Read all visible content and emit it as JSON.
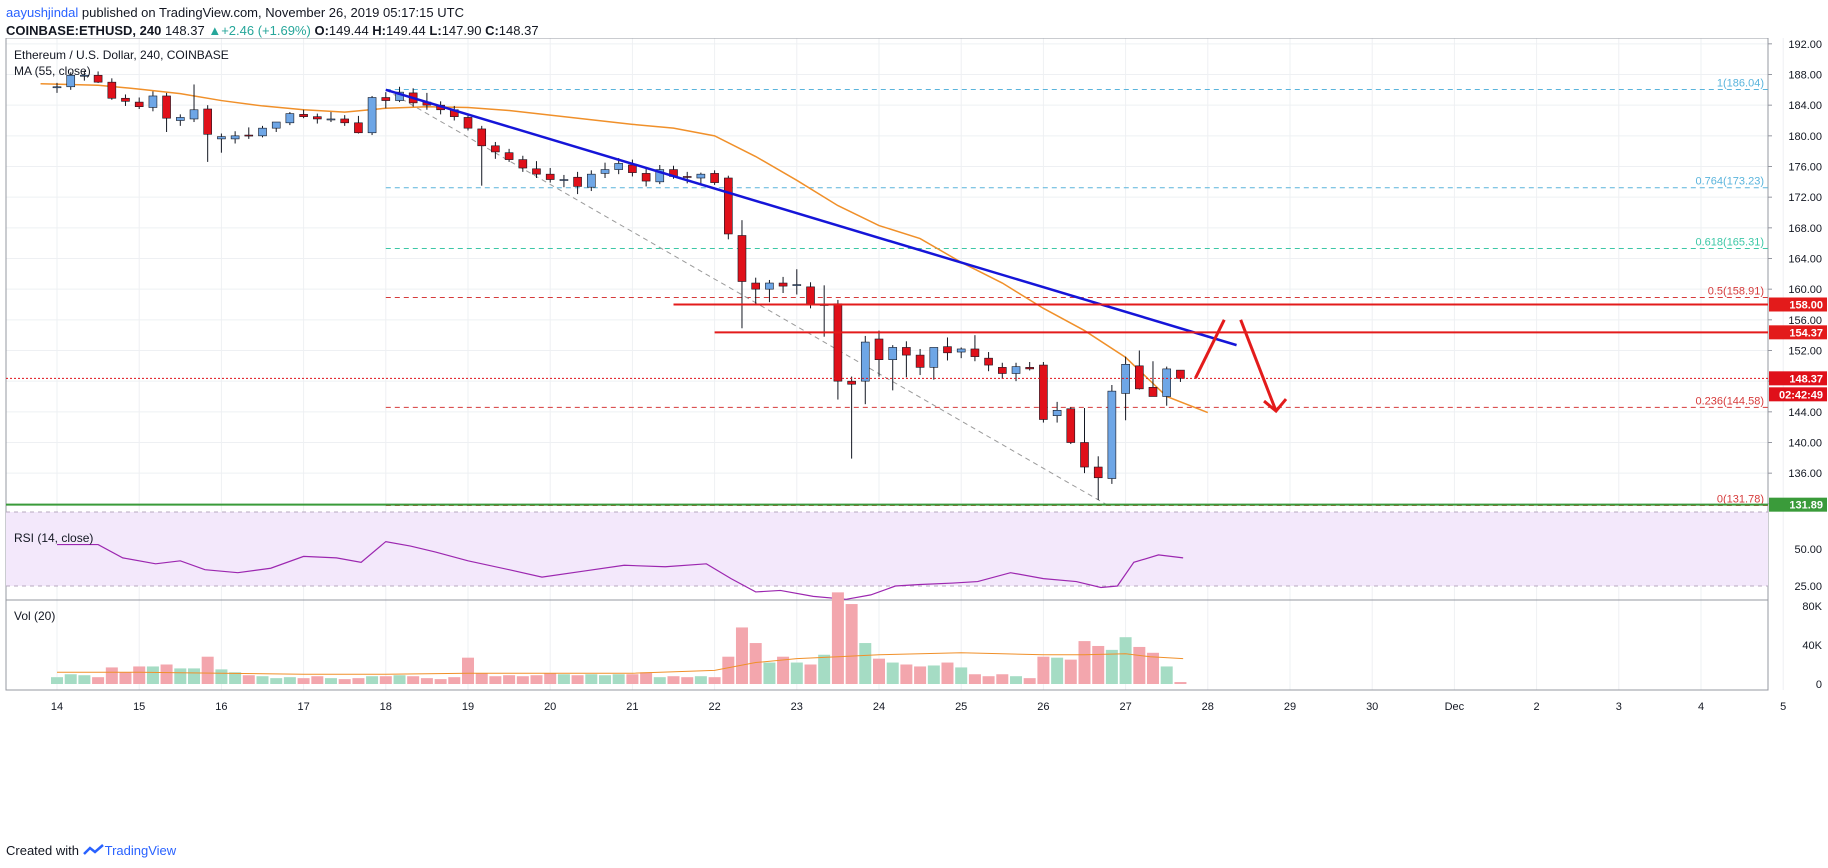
{
  "header": {
    "author": "aayushjindal",
    "published_text": "published on TradingView.com, November 26, 2019 05:17:15 UTC",
    "symbol": "COINBASE:ETHUSD, 240",
    "last": "148.37",
    "change": "+2.46 (+1.69%)",
    "o_label": "O:",
    "o_value": "149.44",
    "h_label": "H:",
    "h_value": "149.44",
    "l_label": "L:",
    "l_value": "147.90",
    "c_label": "C:",
    "c_value": "148.37"
  },
  "legend": {
    "title": "Ethereum / U.S. Dollar, 240, COINBASE",
    "ma": "MA (55, close)",
    "rsi": "RSI (14, close)",
    "vol": "Vol (20)"
  },
  "footer": {
    "created_with": "Created with",
    "brand": "TradingView"
  },
  "colors": {
    "up": "#6ea6e6",
    "down": "#e0101a",
    "ma": "#f0902a",
    "trend": "#1515d8",
    "level": "#e31b1b",
    "support": "#3a9b3a",
    "rsi": "#9c27b0",
    "fib_blue": "#5ab4dc",
    "fib_green": "#3cc7a6",
    "fib_red": "#d63b3b",
    "vol_up": "#a5dcc4",
    "vol_down": "#f3a6ad"
  },
  "chart_data": {
    "type": "candlestick",
    "x_ticks": [
      "14",
      "15",
      "16",
      "17",
      "18",
      "19",
      "20",
      "21",
      "22",
      "23",
      "24",
      "25",
      "26",
      "27",
      "28",
      "29",
      "30",
      "Dec",
      "2",
      "3",
      "4",
      "5"
    ],
    "price_ticks": [
      "192.00",
      "188.00",
      "184.00",
      "180.00",
      "176.00",
      "172.00",
      "168.00",
      "164.00",
      "160.00",
      "156.00",
      "152.00",
      "148.00",
      "144.00",
      "140.00",
      "136.00",
      "132.00"
    ],
    "ylim": [
      129.5,
      192.5
    ],
    "rsi_ticks": [
      "50.00",
      "25.00"
    ],
    "vol_ticks": [
      "80K",
      "40K",
      "0"
    ],
    "candles": [
      [
        0.0,
        186.4,
        186.9,
        185.6,
        186.4
      ],
      [
        0.167,
        186.4,
        188.3,
        186.0,
        187.9
      ],
      [
        0.333,
        187.8,
        188.5,
        187.2,
        187.9
      ],
      [
        0.5,
        187.9,
        188.4,
        186.9,
        187.0
      ],
      [
        0.667,
        187.0,
        187.5,
        184.7,
        184.9
      ],
      [
        0.833,
        184.9,
        185.4,
        183.9,
        184.5
      ],
      [
        1.0,
        184.4,
        185.0,
        183.5,
        183.8
      ],
      [
        1.167,
        183.7,
        185.8,
        183.2,
        185.2
      ],
      [
        1.333,
        185.2,
        185.6,
        180.5,
        182.3
      ],
      [
        1.5,
        182.0,
        182.8,
        181.3,
        182.4
      ],
      [
        1.667,
        182.2,
        186.7,
        181.8,
        183.4
      ],
      [
        1.833,
        183.5,
        184.0,
        176.6,
        180.2
      ],
      [
        2.0,
        179.6,
        180.3,
        177.8,
        179.9
      ],
      [
        2.167,
        179.6,
        180.6,
        179.0,
        180.0
      ],
      [
        2.333,
        180.1,
        181.1,
        179.6,
        180.0
      ],
      [
        2.5,
        180.0,
        181.3,
        179.8,
        181.0
      ],
      [
        2.667,
        181.0,
        181.8,
        180.5,
        181.8
      ],
      [
        2.833,
        181.7,
        183.1,
        181.4,
        182.9
      ],
      [
        3.0,
        182.8,
        183.4,
        182.3,
        182.5
      ],
      [
        3.167,
        182.5,
        182.9,
        181.6,
        182.2
      ],
      [
        3.333,
        182.2,
        183.1,
        181.8,
        182.2
      ],
      [
        3.5,
        182.2,
        182.7,
        181.3,
        181.7
      ],
      [
        3.667,
        181.7,
        182.6,
        180.3,
        180.4
      ],
      [
        3.833,
        180.4,
        185.2,
        180.1,
        185.0
      ],
      [
        4.0,
        185.0,
        185.7,
        183.6,
        184.6
      ],
      [
        4.167,
        184.6,
        186.4,
        184.4,
        185.7
      ],
      [
        4.333,
        185.6,
        186.2,
        183.8,
        184.3
      ],
      [
        4.5,
        184.4,
        185.6,
        183.4,
        184.0
      ],
      [
        4.667,
        184.0,
        184.5,
        182.8,
        183.4
      ],
      [
        4.833,
        183.4,
        183.9,
        182.0,
        182.5
      ],
      [
        5.0,
        182.4,
        182.9,
        180.7,
        181.0
      ],
      [
        5.167,
        180.9,
        181.3,
        173.5,
        178.7
      ],
      [
        5.333,
        178.7,
        179.2,
        177.0,
        177.9
      ],
      [
        5.5,
        177.8,
        178.3,
        176.6,
        176.9
      ],
      [
        5.667,
        176.9,
        177.4,
        175.3,
        175.8
      ],
      [
        5.833,
        175.7,
        176.7,
        174.5,
        175.0
      ],
      [
        6.0,
        175.0,
        175.8,
        173.9,
        174.3
      ],
      [
        6.167,
        174.2,
        174.9,
        173.3,
        174.3
      ],
      [
        6.333,
        174.6,
        175.3,
        172.4,
        173.4
      ],
      [
        6.5,
        173.3,
        175.5,
        172.8,
        175.0
      ],
      [
        6.667,
        175.1,
        176.5,
        174.5,
        175.6
      ],
      [
        6.833,
        175.6,
        177.1,
        175.0,
        176.4
      ],
      [
        7.0,
        176.2,
        176.9,
        174.7,
        175.2
      ],
      [
        7.167,
        175.1,
        175.9,
        173.4,
        174.1
      ],
      [
        7.333,
        174.0,
        176.2,
        173.7,
        175.6
      ],
      [
        7.5,
        175.6,
        176.1,
        174.4,
        174.7
      ],
      [
        7.667,
        174.7,
        175.3,
        173.8,
        174.6
      ],
      [
        7.833,
        174.5,
        175.2,
        173.7,
        175.0
      ],
      [
        8.0,
        175.1,
        175.5,
        173.6,
        173.9
      ],
      [
        8.167,
        174.5,
        174.8,
        166.5,
        167.2
      ],
      [
        8.333,
        167.0,
        169.0,
        154.9,
        161.0
      ],
      [
        8.5,
        160.8,
        161.5,
        158.1,
        160.0
      ],
      [
        8.667,
        160.0,
        161.2,
        158.3,
        160.8
      ],
      [
        8.833,
        160.8,
        161.6,
        159.5,
        160.4
      ],
      [
        9.0,
        160.5,
        162.6,
        159.3,
        160.6
      ],
      [
        9.167,
        160.3,
        160.9,
        157.5,
        158.1
      ],
      [
        9.333,
        158.0,
        160.5,
        153.8,
        158.0
      ],
      [
        9.5,
        158.1,
        158.6,
        145.6,
        148.0
      ],
      [
        9.667,
        148.0,
        148.6,
        137.9,
        147.6
      ],
      [
        9.833,
        148.0,
        153.9,
        145.0,
        153.1
      ],
      [
        10.0,
        153.5,
        154.6,
        148.6,
        150.8
      ],
      [
        10.167,
        150.8,
        152.7,
        146.8,
        152.4
      ],
      [
        10.333,
        152.4,
        153.2,
        148.5,
        151.4
      ],
      [
        10.5,
        151.4,
        152.2,
        148.8,
        149.8
      ],
      [
        10.667,
        149.8,
        151.9,
        148.2,
        152.4
      ],
      [
        10.833,
        152.5,
        153.7,
        150.7,
        151.7
      ],
      [
        11.0,
        151.8,
        152.4,
        151.0,
        152.2
      ],
      [
        11.167,
        152.2,
        154.0,
        150.6,
        151.2
      ],
      [
        11.333,
        151.0,
        151.8,
        149.3,
        150.1
      ],
      [
        11.5,
        149.8,
        150.4,
        148.3,
        149.0
      ],
      [
        11.667,
        149.0,
        150.4,
        148.0,
        149.9
      ],
      [
        11.833,
        149.8,
        150.5,
        149.4,
        149.6
      ],
      [
        12.0,
        150.1,
        150.5,
        142.6,
        143.0
      ],
      [
        12.167,
        143.5,
        145.3,
        142.6,
        144.2
      ],
      [
        12.333,
        144.4,
        144.6,
        139.8,
        140.0
      ],
      [
        12.5,
        140.0,
        144.5,
        136.0,
        136.8
      ],
      [
        12.667,
        136.8,
        138.2,
        132.5,
        135.4
      ],
      [
        12.833,
        135.3,
        147.5,
        134.6,
        146.7
      ],
      [
        13.0,
        146.4,
        151.2,
        142.9,
        150.2
      ],
      [
        13.167,
        150.0,
        152.0,
        146.9,
        147.0
      ],
      [
        13.333,
        147.2,
        150.6,
        146.1,
        146.0
      ],
      [
        13.5,
        146.0,
        149.9,
        144.8,
        149.6
      ],
      [
        13.667,
        149.44,
        149.44,
        147.9,
        148.37
      ]
    ],
    "ma_points": [
      [
        -0.2,
        186.8
      ],
      [
        0.5,
        186.6
      ],
      [
        1.0,
        186.1
      ],
      [
        1.5,
        185.5
      ],
      [
        2.0,
        184.6
      ],
      [
        2.5,
        183.9
      ],
      [
        3.0,
        183.4
      ],
      [
        3.5,
        183.1
      ],
      [
        4.0,
        183.6
      ],
      [
        4.5,
        183.8
      ],
      [
        5.0,
        183.7
      ],
      [
        5.5,
        183.3
      ],
      [
        6.0,
        182.7
      ],
      [
        6.5,
        182.1
      ],
      [
        7.0,
        181.5
      ],
      [
        7.5,
        181.0
      ],
      [
        8.0,
        180.0
      ],
      [
        8.5,
        177.3
      ],
      [
        9.0,
        174.2
      ],
      [
        9.5,
        170.9
      ],
      [
        10.0,
        168.3
      ],
      [
        10.5,
        166.6
      ],
      [
        11.0,
        163.5
      ],
      [
        11.5,
        160.8
      ],
      [
        12.0,
        157.5
      ],
      [
        12.5,
        154.6
      ],
      [
        13.0,
        151.1
      ],
      [
        13.5,
        146.0
      ],
      [
        14.0,
        143.9
      ]
    ],
    "trendline": [
      [
        4.0,
        186.0
      ],
      [
        14.35,
        152.7
      ]
    ],
    "fib_levels": [
      {
        "label": "1(186.04)",
        "value": 186.04,
        "color": "fib_blue"
      },
      {
        "label": "0.764(173.23)",
        "value": 173.23,
        "color": "fib_blue"
      },
      {
        "label": "0.618(165.31)",
        "value": 165.31,
        "color": "fib_green"
      },
      {
        "label": "0.5(158.91)",
        "value": 158.91,
        "color": "fib_red"
      },
      {
        "label": "0.236(144.58)",
        "value": 144.58,
        "color": "fib_red"
      },
      {
        "label": "0(131.78)",
        "value": 131.78,
        "color": "fib_red"
      }
    ],
    "levels": [
      {
        "label": "158.00",
        "value": 158.0,
        "from": 7.5
      },
      {
        "label": "154.37",
        "value": 154.37,
        "from": 8.0
      }
    ],
    "support": {
      "label": "131.89",
      "value": 131.89
    },
    "last_price": {
      "label": "148.37",
      "value": 148.37,
      "countdown": "02:42:49"
    },
    "projection": [
      [
        13.85,
        148.4
      ],
      [
        14.2,
        156.0
      ],
      [
        14.4,
        156.0
      ],
      [
        14.83,
        144.1
      ]
    ],
    "fib_anchor": [
      [
        4.0,
        186.0
      ],
      [
        12.8,
        131.7
      ]
    ],
    "rsi": [
      [
        0.0,
        53
      ],
      [
        0.5,
        53
      ],
      [
        0.8,
        44
      ],
      [
        1.2,
        40
      ],
      [
        1.5,
        42
      ],
      [
        1.8,
        36
      ],
      [
        2.2,
        34
      ],
      [
        2.6,
        37
      ],
      [
        3.0,
        45
      ],
      [
        3.4,
        44
      ],
      [
        3.7,
        41
      ],
      [
        4.0,
        55
      ],
      [
        4.3,
        52
      ],
      [
        4.6,
        48
      ],
      [
        5.0,
        42
      ],
      [
        5.5,
        36
      ],
      [
        5.9,
        31
      ],
      [
        6.4,
        35
      ],
      [
        6.9,
        39
      ],
      [
        7.4,
        38
      ],
      [
        7.9,
        40
      ],
      [
        8.2,
        30
      ],
      [
        8.5,
        21
      ],
      [
        8.8,
        22
      ],
      [
        9.2,
        18
      ],
      [
        9.6,
        16
      ],
      [
        9.9,
        19
      ],
      [
        10.2,
        25
      ],
      [
        10.5,
        26
      ],
      [
        10.9,
        27
      ],
      [
        11.2,
        28
      ],
      [
        11.6,
        34
      ],
      [
        12.0,
        30
      ],
      [
        12.4,
        28
      ],
      [
        12.7,
        24
      ],
      [
        12.9,
        25
      ],
      [
        13.1,
        41
      ],
      [
        13.4,
        46
      ],
      [
        13.7,
        44
      ]
    ],
    "volume": [
      [
        0.0,
        7
      ],
      [
        0.167,
        10
      ],
      [
        0.333,
        9
      ],
      [
        0.5,
        7
      ],
      [
        0.667,
        17
      ],
      [
        0.833,
        12
      ],
      [
        1.0,
        18
      ],
      [
        1.167,
        18
      ],
      [
        1.333,
        20
      ],
      [
        1.5,
        16
      ],
      [
        1.667,
        16
      ],
      [
        1.833,
        28
      ],
      [
        2.0,
        15
      ],
      [
        2.167,
        12
      ],
      [
        2.333,
        9
      ],
      [
        2.5,
        8
      ],
      [
        2.667,
        6
      ],
      [
        2.833,
        7
      ],
      [
        3.0,
        6
      ],
      [
        3.167,
        8
      ],
      [
        3.333,
        6
      ],
      [
        3.5,
        5
      ],
      [
        3.667,
        6
      ],
      [
        3.833,
        8
      ],
      [
        4.0,
        8
      ],
      [
        4.167,
        9
      ],
      [
        4.333,
        8
      ],
      [
        4.5,
        6
      ],
      [
        4.667,
        5
      ],
      [
        4.833,
        7
      ],
      [
        5.0,
        27
      ],
      [
        5.167,
        11
      ],
      [
        5.333,
        8
      ],
      [
        5.5,
        9
      ],
      [
        5.667,
        8
      ],
      [
        5.833,
        9
      ],
      [
        6.0,
        11
      ],
      [
        6.167,
        10
      ],
      [
        6.333,
        9
      ],
      [
        6.5,
        10
      ],
      [
        6.667,
        9
      ],
      [
        6.833,
        10
      ],
      [
        7.0,
        10
      ],
      [
        7.167,
        12
      ],
      [
        7.333,
        7
      ],
      [
        7.5,
        8
      ],
      [
        7.667,
        7
      ],
      [
        7.833,
        8
      ],
      [
        8.0,
        7
      ],
      [
        8.167,
        28
      ],
      [
        8.333,
        58
      ],
      [
        8.5,
        42
      ],
      [
        8.667,
        22
      ],
      [
        8.833,
        28
      ],
      [
        9.0,
        22
      ],
      [
        9.167,
        20
      ],
      [
        9.333,
        30
      ],
      [
        9.5,
        94
      ],
      [
        9.667,
        82
      ],
      [
        9.833,
        42
      ],
      [
        10.0,
        26
      ],
      [
        10.167,
        22
      ],
      [
        10.333,
        20
      ],
      [
        10.5,
        18
      ],
      [
        10.667,
        19
      ],
      [
        10.833,
        22
      ],
      [
        11.0,
        17
      ],
      [
        11.167,
        10
      ],
      [
        11.333,
        8
      ],
      [
        11.5,
        10
      ],
      [
        11.667,
        8
      ],
      [
        11.833,
        6
      ],
      [
        12.0,
        28
      ],
      [
        12.167,
        27
      ],
      [
        12.333,
        25
      ],
      [
        12.5,
        44
      ],
      [
        12.667,
        39
      ],
      [
        12.833,
        35
      ],
      [
        13.0,
        48
      ],
      [
        13.167,
        38
      ],
      [
        13.333,
        32
      ],
      [
        13.5,
        18
      ],
      [
        13.667,
        2
      ]
    ],
    "vol_ma": [
      [
        0.0,
        12
      ],
      [
        1.0,
        12
      ],
      [
        2.0,
        11
      ],
      [
        3.0,
        10
      ],
      [
        4.0,
        10
      ],
      [
        5.0,
        11
      ],
      [
        6.0,
        11
      ],
      [
        7.0,
        11
      ],
      [
        8.0,
        14
      ],
      [
        8.5,
        22
      ],
      [
        9.0,
        26
      ],
      [
        9.5,
        28
      ],
      [
        10.0,
        30
      ],
      [
        10.5,
        31
      ],
      [
        11.0,
        32
      ],
      [
        11.5,
        31
      ],
      [
        12.0,
        30
      ],
      [
        12.5,
        30
      ],
      [
        13.0,
        31
      ],
      [
        13.3,
        28
      ],
      [
        13.7,
        26
      ]
    ]
  }
}
